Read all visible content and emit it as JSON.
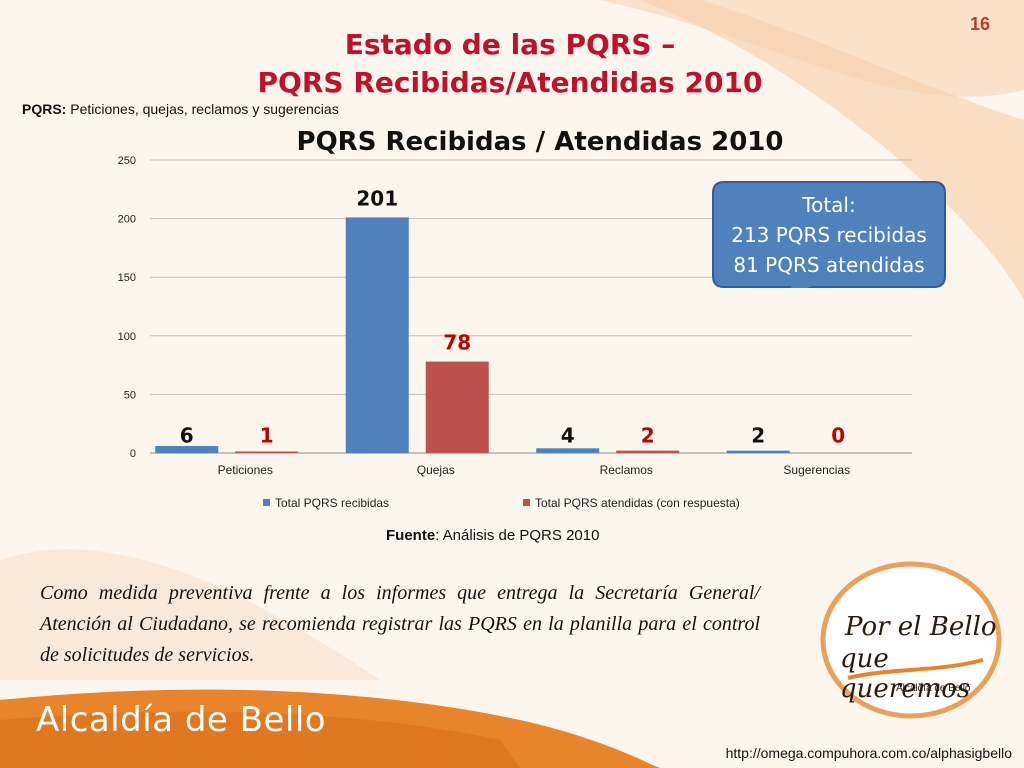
{
  "page_number": "16",
  "title_line1": "Estado de las PQRS –",
  "title_line2": "PQRS Recibidas/Atendidas 2010",
  "subtitle": {
    "term": "PQRS:",
    "definition": "Peticiones, quejas, reclamos y sugerencias"
  },
  "chart_data": {
    "type": "bar",
    "title": "PQRS Recibidas  / Atendidas 2010",
    "categories": [
      "Peticiones",
      "Quejas",
      "Reclamos",
      "Sugerencias"
    ],
    "series": [
      {
        "name": "Total PQRS recibidas",
        "values": [
          6,
          201,
          4,
          2
        ],
        "color": "#4f81bd",
        "label_color": "#111111"
      },
      {
        "name": "Total PQRS atendidas (con respuesta)",
        "values": [
          1,
          78,
          2,
          0
        ],
        "color": "#c0504d",
        "label_color": "#c00000"
      }
    ],
    "ylim": [
      0,
      250
    ],
    "yticks": [
      0,
      50,
      100,
      150,
      200,
      250
    ],
    "grid": true,
    "legend": "bottom"
  },
  "callout": {
    "label": "Total",
    "line1": "213 PQRS recibidas",
    "line2": "81 PQRS atendidas",
    "color": "#4f81bd"
  },
  "source": {
    "label": "Fuente",
    "text": ": Análisis de PQRS 2010"
  },
  "body_text": "Como medida preventiva frente a los informes que entrega la Secretaría General/ Atención al Ciudadano, se recomienda registrar las PQRS en la planilla para el control de solicitudes de servicios.",
  "logo": {
    "line1": "Por el Bello",
    "line2": "que queremos",
    "sub": "Alcaldía de Bello"
  },
  "footer": {
    "brand": "Alcaldía de Bello",
    "url": "http://omega.compuhora.com.co/alphasigbello",
    "band_color": "#e8842b"
  }
}
